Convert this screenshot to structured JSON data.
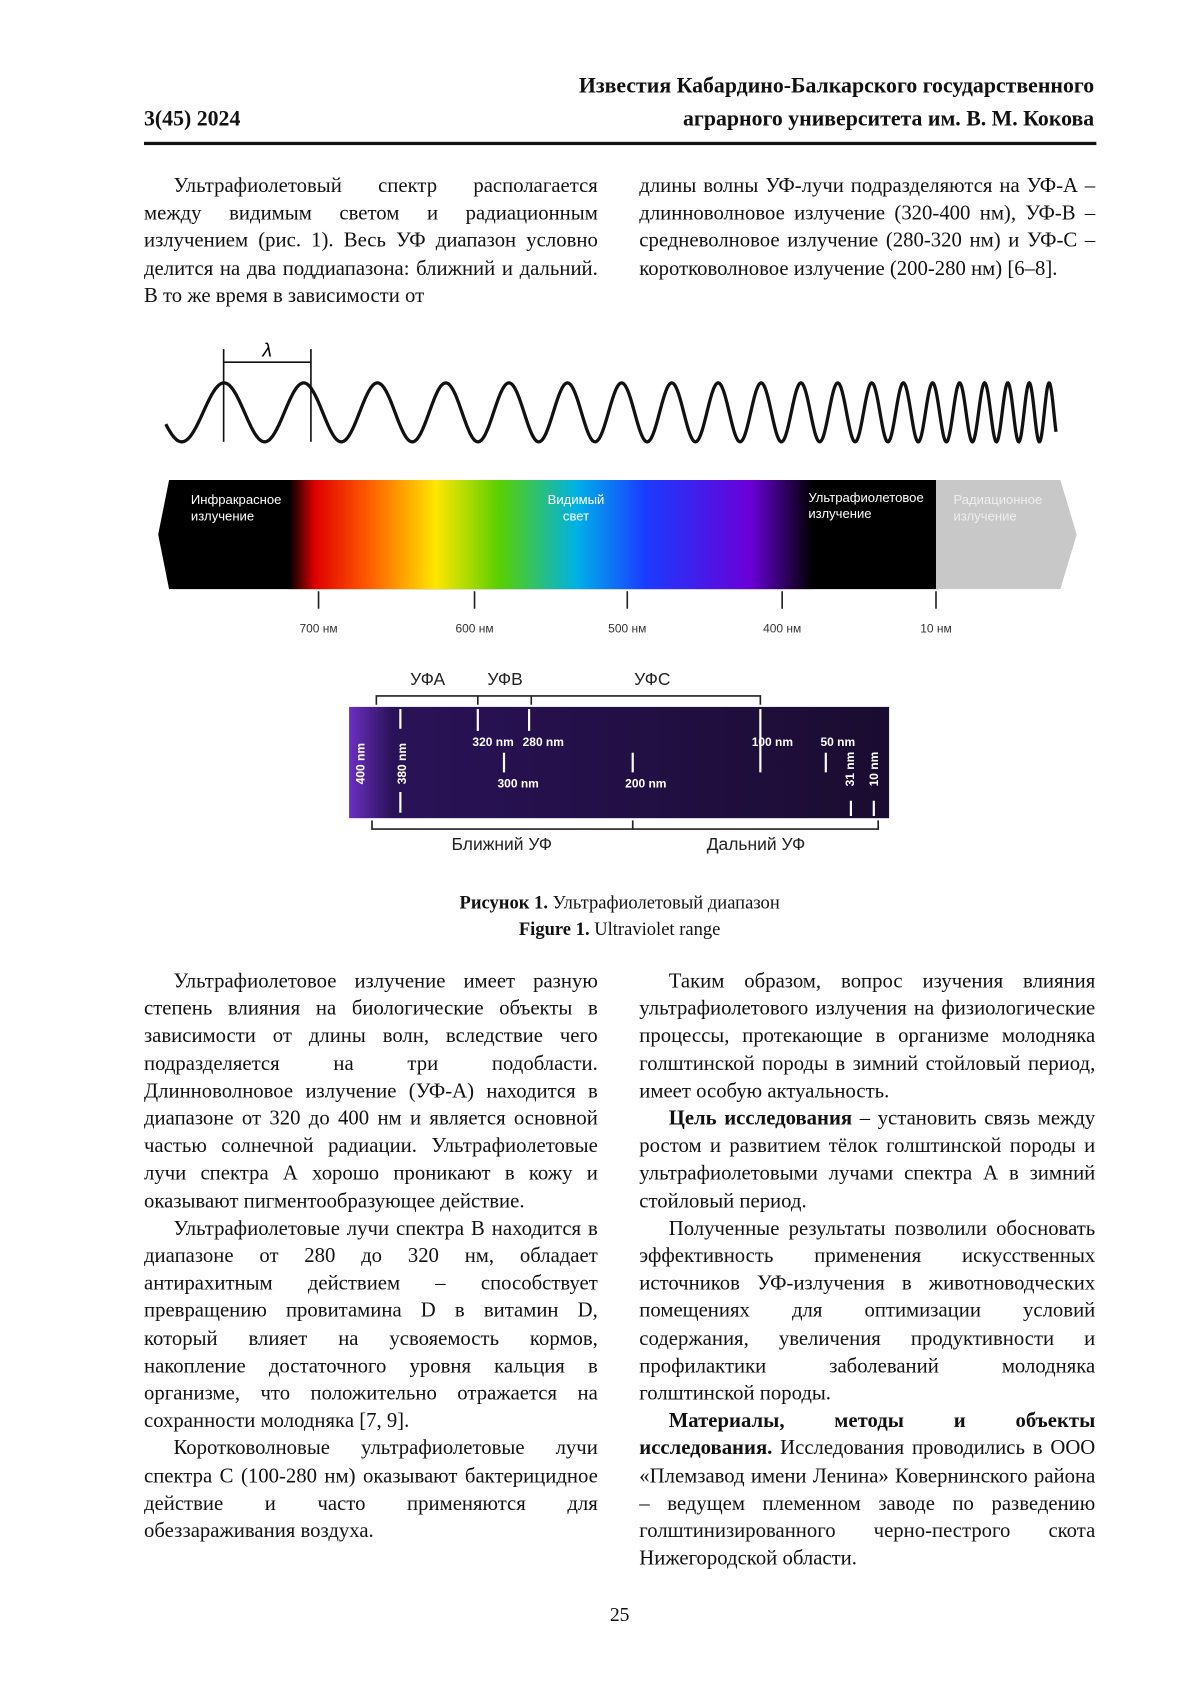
{
  "header": {
    "journal_line1": "Известия Кабардино-Балкарского государственного",
    "journal_line2": "аграрного университета им. В. М. Кокова",
    "issue": "3(45) 2024"
  },
  "top_columns": {
    "left": [
      {
        "text": "Ультрафиолетовый спектр располагается между видимым светом и радиационным излучением (рис. 1). Весь УФ диапазон условно делится на два поддиапазона: ближний и дальний. В то же время в зависимости от"
      }
    ],
    "right": [
      {
        "text": "длины волны УФ-лучи подразделяются на УФ-А – длинноволновое излучение (320-400 нм), УФ-В – средневолновое излучение (280-320 нм) и УФ-С – коротковолновое излучение (200-280 нм) [6–8]."
      }
    ]
  },
  "figure": {
    "wave_label": "λ",
    "spectrum_regions": [
      "Инфракрасное излучение",
      "Видимый свет",
      "Ультрафиолетовое излучение",
      "Радиационное излучение"
    ],
    "spectrum_ticks": [
      "700 нм",
      "600 нм",
      "500 нм",
      "400 нм",
      "10 нм"
    ],
    "uv_bands": [
      "УФА",
      "УФВ",
      "УФС"
    ],
    "uv_wavelengths": [
      "400 nm",
      "380 nm",
      "320 nm",
      "280 nm",
      "300 nm",
      "200 nm",
      "100 nm",
      "50 nm",
      "31 nm",
      "10 nm"
    ],
    "uv_ranges": [
      "Ближний УФ",
      "Дальний УФ"
    ],
    "caption": {
      "ru": {
        "label": "Рисунок 1.",
        "text": " Ультрафиолетовый диапазон"
      },
      "en": {
        "label": "Figure 1.",
        "text": " Ultraviolet range"
      }
    }
  },
  "body_columns": {
    "left": [
      {
        "text": "Ультрафиолетовое излучение имеет разную степень влияния на биологические объекты в зависимости от длины волн, вследствие чего подразделяется на три подобласти. Длинноволновое излучение (УФ-А) находится в диапазоне от 320 до 400 нм и является основной частью солнечной радиации. Ультрафиолетовые лучи спектра А хорошо проникают в кожу и оказывают пигментообразующее действие."
      },
      {
        "text": "Ультрафиолетовые лучи спектра B находится в диапазоне от 280 до 320 нм, обладает антирахитным действием – способствует превращению провитамина D в витамин D, который влияет на усвояемость кормов, накопление достаточного уровня кальция в организме, что положительно отражается на сохранности молодняка [7, 9]."
      },
      {
        "text": "Коротковолновые ультрафиолетовые лучи спектра С (100-280 нм) оказывают бактерицидное действие и часто применяются для обеззараживания воздуха."
      }
    ],
    "right": [
      {
        "text": "Таким образом, вопрос изучения влияния ультрафиолетового излучения на физиологические процессы, протекающие в организме молодняка голштинской породы в зимний стойловый период, имеет особую актуальность."
      },
      {
        "bold": "Цель исследования",
        "text": " – установить связь между ростом и развитием тёлок голштинской породы и ультрафиолетовыми лучами спектра А в зимний стойловый период."
      },
      {
        "text": "Полученные результаты позволили обосновать эффективность применения искусственных источников УФ-излучения в животноводческих помещениях для оптимизации условий содержания, увеличения продуктивности и профилактики заболеваний молодняка голштинской породы."
      },
      {
        "bold": "Материалы, методы и объекты исследования.",
        "text": " Исследования проводились в ООО «Племзавод имени Ленина» Ковернинского района – ведущем племенном заводе по разведению голштинизированного черно-пестрого скота Нижегородской области."
      }
    ]
  },
  "page_number": "25"
}
